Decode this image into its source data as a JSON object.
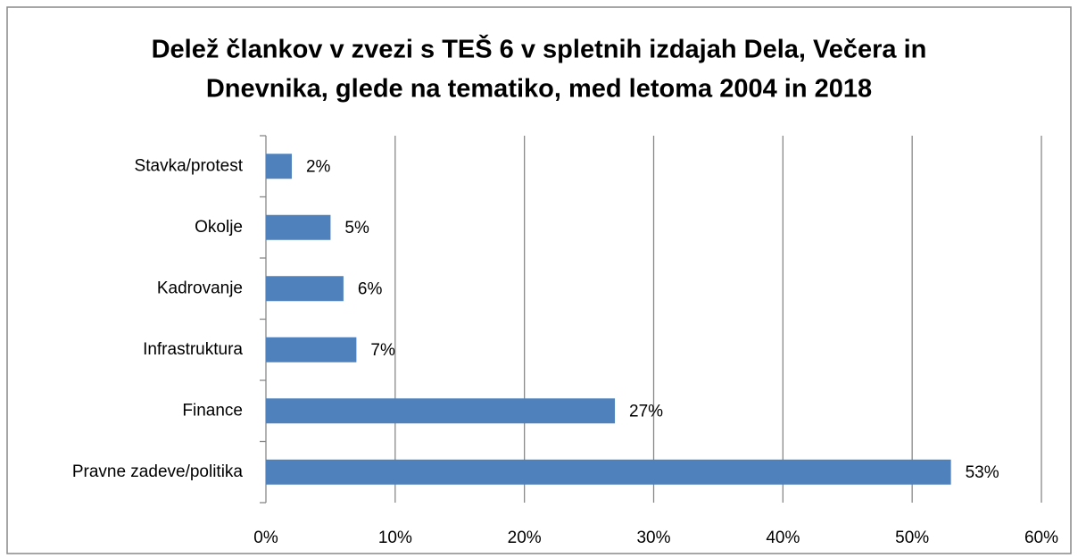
{
  "chart_data": {
    "type": "hbar",
    "title": [
      "Delež člankov v zvezi s TEŠ 6 v spletnih izdajah Dela, Večera in",
      "Dnevnika, glede na tematiko, med letoma 2004 in 2018"
    ],
    "categories": [
      "Stavka/protest",
      "Okolje",
      "Kadrovanje",
      "Infrastruktura",
      "Finance",
      "Pravne zadeve/politika"
    ],
    "values": [
      2,
      5,
      6,
      7,
      27,
      53
    ],
    "value_labels": [
      "2%",
      "5%",
      "6%",
      "7%",
      "27%",
      "53%"
    ],
    "color": "#4f81bd",
    "xlim": [
      0,
      60
    ],
    "xticks": [
      {
        "value": 0,
        "label": "0%"
      },
      {
        "value": 10,
        "label": "10%"
      },
      {
        "value": 20,
        "label": "20%"
      },
      {
        "value": 30,
        "label": "30%"
      },
      {
        "value": 40,
        "label": "40%"
      },
      {
        "value": 50,
        "label": "50%"
      },
      {
        "value": 60,
        "label": "60%"
      }
    ],
    "grid": true
  }
}
